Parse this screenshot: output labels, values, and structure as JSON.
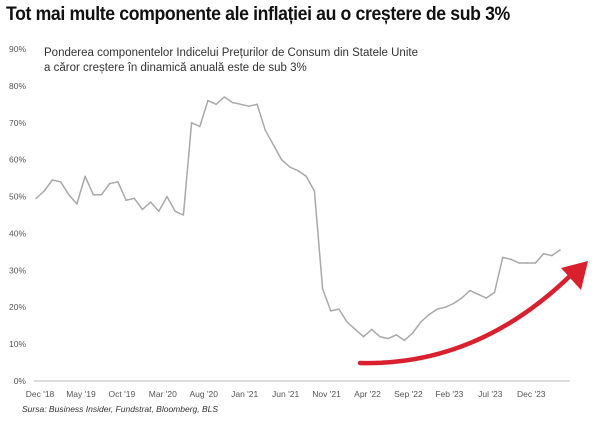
{
  "headline": "Tot mai multe componente ale inflației au o creștere de sub 3%",
  "source": "Sursa: Business Insider, Fundstrat, Bloomberg, BLS",
  "colors": {
    "line": "#a9a9a9",
    "arrow": "#d9202e",
    "axis": "#bdbdbd",
    "text": "#555555"
  },
  "chart_data": {
    "type": "line",
    "subtitle": [
      "Ponderea componentelor Indicelui Prețurilor de Consum din Statele Unite",
      "a căror creștere în dinamică anuală este de sub 3%"
    ],
    "xlabel": "",
    "ylabel": "",
    "ylim": [
      0,
      90
    ],
    "grid": false,
    "y_ticks": [
      "0%",
      "10%",
      "20%",
      "30%",
      "40%",
      "50%",
      "60%",
      "70%",
      "80%",
      "90%"
    ],
    "x_ticks": [
      "Dec '18",
      "May '19",
      "Oct '19",
      "Mar '20",
      "Aug '20",
      "Jan '21",
      "Jun '21",
      "Nov '21",
      "Apr '22",
      "Sep '22",
      "Feb '23",
      "Jul '23",
      "Dec '23"
    ],
    "annotation": "upward red arrow from 2022 low toward 2024",
    "series": [
      {
        "values": [
          49.5,
          51.5,
          54.5,
          54,
          50.5,
          48,
          55.5,
          50.5,
          50.5,
          53.5,
          54,
          49,
          49.5,
          46.5,
          48.5,
          46,
          50,
          46,
          45,
          70,
          69,
          76,
          75,
          77,
          75.5,
          75,
          74.5,
          75,
          68,
          64,
          60,
          58,
          57,
          55.5,
          51.5,
          25,
          19,
          19.5,
          16,
          14,
          12,
          14,
          12,
          11.5,
          12.5,
          11,
          13,
          16,
          18,
          19.5,
          20,
          21,
          22.5,
          24.5,
          23.5,
          22.5,
          24,
          33.5,
          33,
          32,
          32,
          32,
          34.5,
          34,
          35.5
        ]
      }
    ]
  }
}
